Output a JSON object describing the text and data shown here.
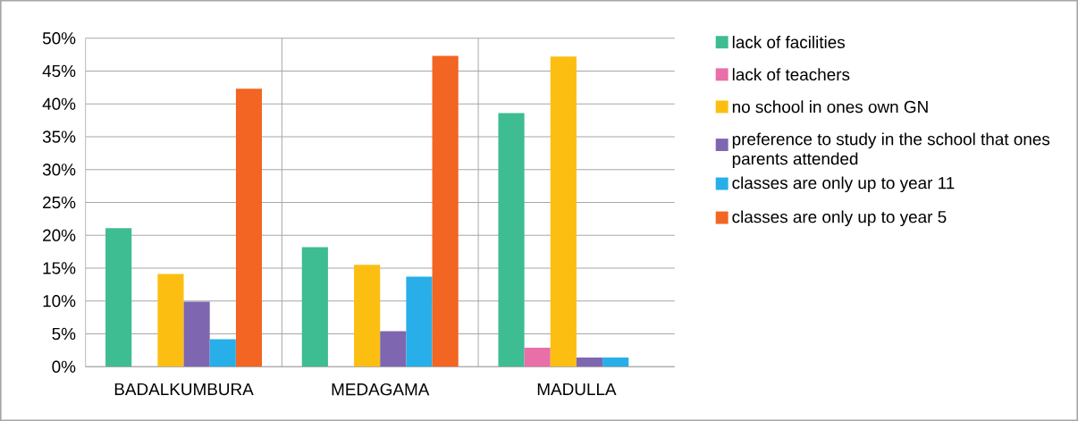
{
  "chart_data": {
    "type": "bar",
    "categories": [
      "BADALKUMBURA",
      "MEDAGAMA",
      "MADULLA"
    ],
    "series": [
      {
        "name": "lack of facilities",
        "color": "#3dbd91",
        "values": [
          21.1,
          18.2,
          38.6
        ]
      },
      {
        "name": "lack of teachers",
        "color": "#e86fa8",
        "values": [
          0,
          0,
          2.9
        ]
      },
      {
        "name": "no school in ones own GN",
        "color": "#fcbf11",
        "values": [
          14.1,
          15.5,
          47.2
        ]
      },
      {
        "name": "preference to study in the school that ones parents attended",
        "color": "#7e67b0",
        "values": [
          9.9,
          5.4,
          1.4
        ]
      },
      {
        "name": "classes are only up to year 11",
        "color": "#28aee8",
        "values": [
          4.2,
          13.7,
          1.4
        ]
      },
      {
        "name": "classes are only up to year 5",
        "color": "#f26522",
        "values": [
          42.3,
          47.3,
          0
        ]
      }
    ],
    "ylim": [
      0,
      50
    ],
    "yticks": [
      {
        "value": 0,
        "label": "0%"
      },
      {
        "value": 5,
        "label": "5%"
      },
      {
        "value": 10,
        "label": "10%"
      },
      {
        "value": 15,
        "label": "15%"
      },
      {
        "value": 20,
        "label": "20%"
      },
      {
        "value": 25,
        "label": "25%"
      },
      {
        "value": 30,
        "label": "30%"
      },
      {
        "value": 35,
        "label": "35%"
      },
      {
        "value": 40,
        "label": "40%"
      },
      {
        "value": 45,
        "label": "45%"
      },
      {
        "value": 50,
        "label": "50%"
      }
    ],
    "grid": true,
    "legend": "right"
  }
}
